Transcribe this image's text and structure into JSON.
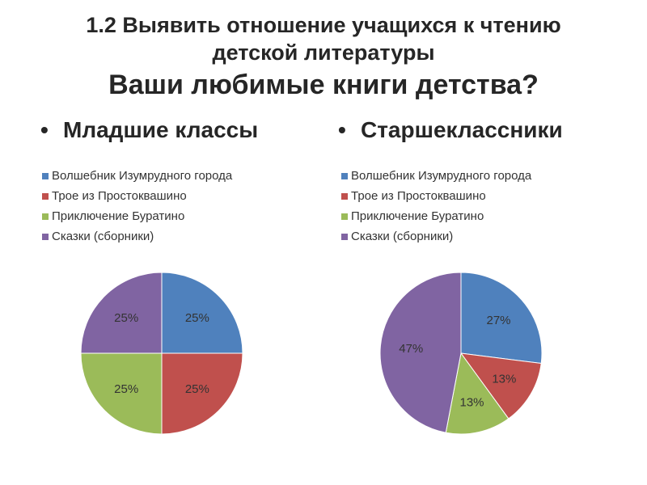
{
  "slide": {
    "title_line1": "1.2 Выявить отношение учащихся к чтению",
    "title_line1b": "детской литературы",
    "title_line2": "Ваши любимые книги детства?",
    "bullet_symbol": "•",
    "bullet_left": "Младшие классы",
    "bullet_right": "Старшеклассники"
  },
  "colors": {
    "blue": "#4F81BD",
    "red": "#C0504D",
    "green": "#9BBB59",
    "purple": "#8064A2"
  },
  "chart_data": [
    {
      "type": "pie",
      "categories": [
        "Волшебник Изумрудного города",
        "Трое из Простоквашино",
        "Приключение Буратино",
        "Сказки (сборники)"
      ],
      "values": [
        25,
        25,
        25,
        25
      ],
      "labels": [
        "25%",
        "25%",
        "25%",
        "25%"
      ],
      "legend_position": "top"
    },
    {
      "type": "pie",
      "categories": [
        "Волшебник Изумрудного города",
        "Трое из Простоквашино",
        "Приключение Буратино",
        "Сказки (сборники)"
      ],
      "values": [
        27,
        13,
        13,
        47
      ],
      "labels": [
        "27%",
        "13%",
        "13%",
        "47%"
      ],
      "legend_position": "top"
    }
  ]
}
